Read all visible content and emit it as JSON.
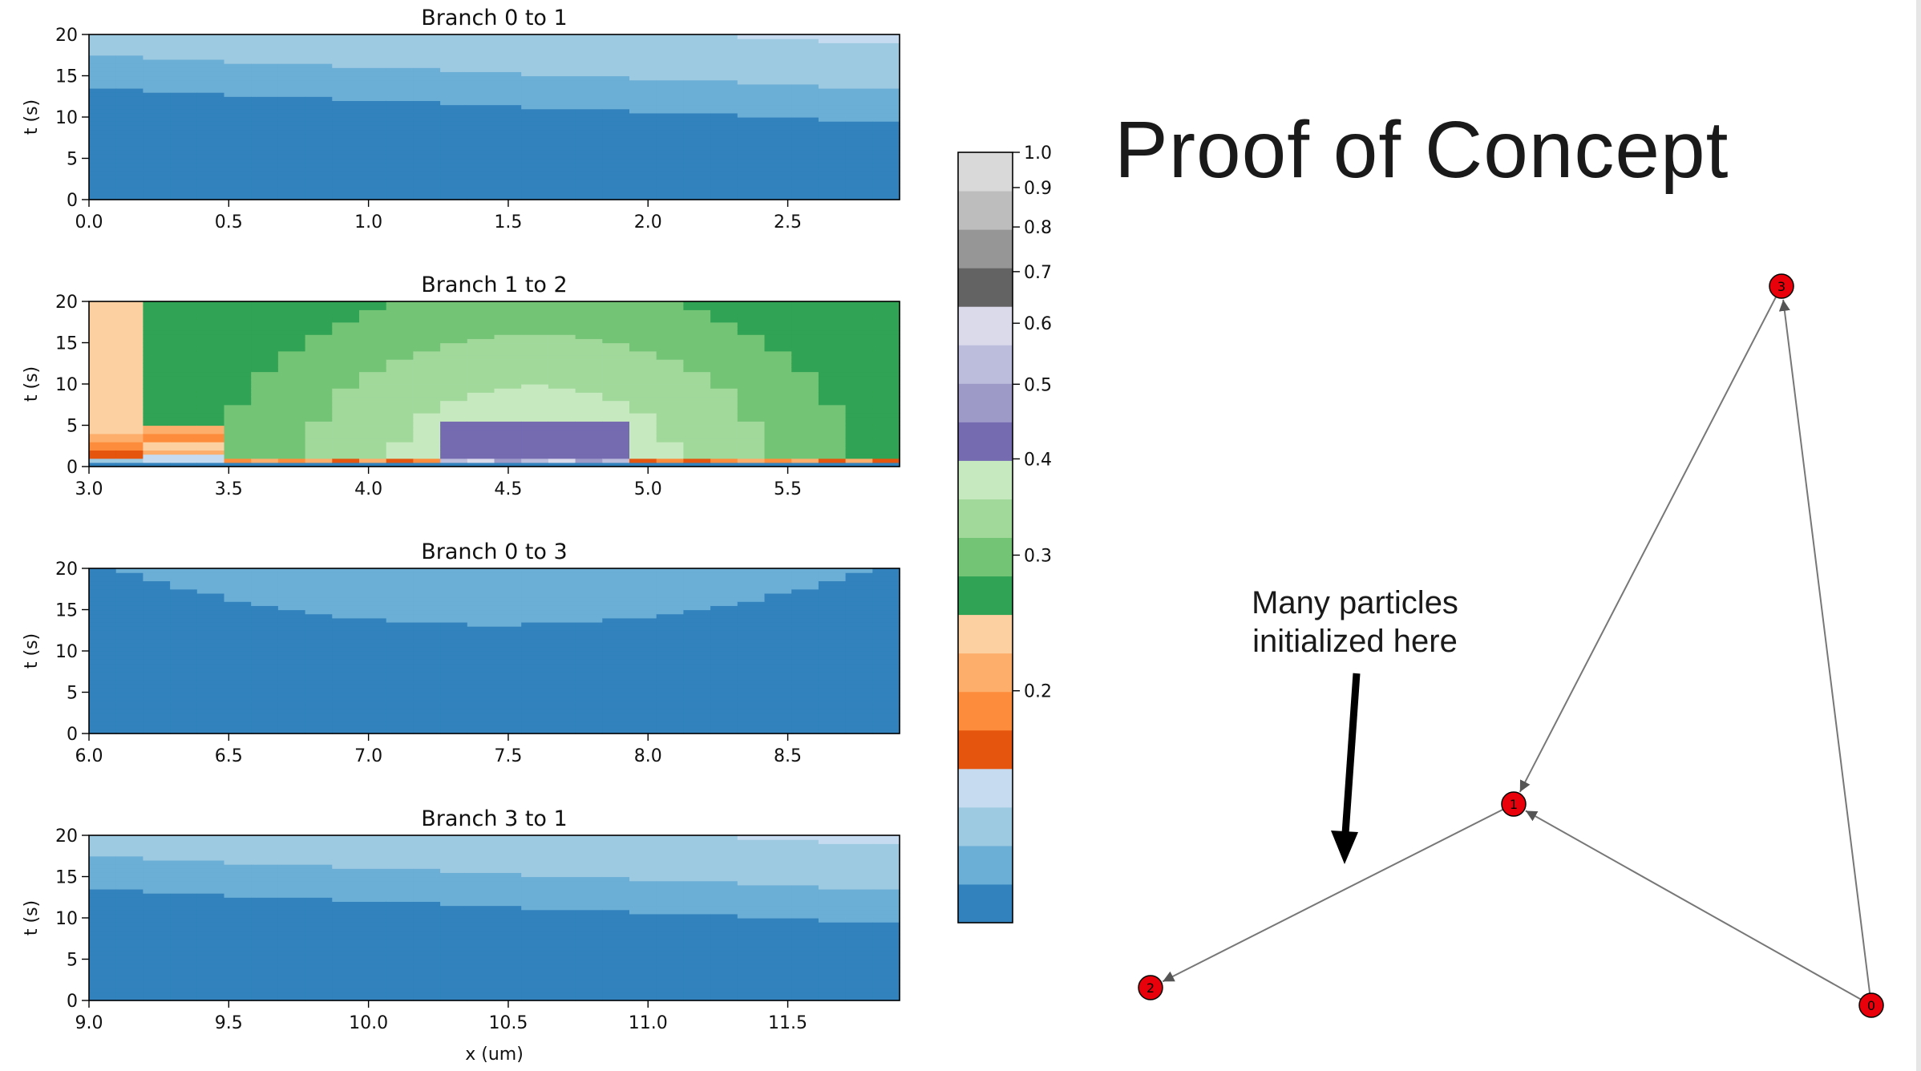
{
  "slide": {
    "title": "Proof of Concept",
    "annotation_line1": "Many particles",
    "annotation_line2": "initialized here"
  },
  "colors": {
    "level_colors": [
      "#3182bd",
      "#6baed6",
      "#9ecae1",
      "#c6dbef",
      "#e6550d",
      "#fd8d3c",
      "#fdae6b",
      "#fdd0a2",
      "#31a354",
      "#74c476",
      "#a1d99b",
      "#c7e9c0",
      "#756bb1",
      "#9e9ac8",
      "#bcbddc",
      "#dadaeb",
      "#636363",
      "#969696",
      "#bdbdbd",
      "#d9d9d9"
    ],
    "node_fill": "#e8000b",
    "edge_color": "#777777"
  },
  "chart_data": [
    {
      "type": "heatmap",
      "title": "Branch 0 to 1",
      "xlabel": "",
      "ylabel": "t (s)",
      "xlim": [
        0.0,
        2.9
      ],
      "ylim": [
        0,
        20
      ],
      "xticks": [
        "0.0",
        "0.5",
        "1.0",
        "1.5",
        "2.0",
        "2.5"
      ],
      "yticks": [
        "0",
        "5",
        "10",
        "15",
        "20"
      ],
      "pattern": "gradient",
      "band_offsets": [
        13.5,
        17.5,
        23,
        27,
        30.5,
        31.5,
        34
      ],
      "band_slope": -4.1
    },
    {
      "type": "heatmap",
      "title": "Branch 1 to 2",
      "xlabel": "",
      "ylabel": "t (s)",
      "xlim": [
        3.0,
        5.9
      ],
      "ylim": [
        0,
        20
      ],
      "xticks": [
        "3.0",
        "3.5",
        "4.0",
        "4.5",
        "5.0",
        "5.5"
      ],
      "yticks": [
        "0",
        "5",
        "10",
        "15",
        "20"
      ],
      "pattern": "dome"
    },
    {
      "type": "heatmap",
      "title": "Branch 0 to 3",
      "xlabel": "",
      "ylabel": "t (s)",
      "xlim": [
        6.0,
        8.9
      ],
      "ylim": [
        0,
        20
      ],
      "xticks": [
        "6.0",
        "6.5",
        "7.0",
        "7.5",
        "8.0",
        "8.5"
      ],
      "yticks": [
        "0",
        "5",
        "10",
        "15",
        "20"
      ],
      "pattern": "arch"
    },
    {
      "type": "heatmap",
      "title": "Branch 3 to 1",
      "xlabel": "x (um)",
      "ylabel": "t (s)",
      "xlim": [
        9.0,
        11.9
      ],
      "ylim": [
        0,
        20
      ],
      "xticks": [
        "9.0",
        "9.5",
        "10.0",
        "10.5",
        "11.0",
        "11.5"
      ],
      "yticks": [
        "0",
        "5",
        "10",
        "15",
        "20"
      ],
      "pattern": "gradient",
      "band_offsets": [
        13.5,
        17.5,
        23,
        27,
        30.5,
        31.5,
        34
      ],
      "band_slope": -4.1
    }
  ],
  "colorbar": {
    "type": "colorbar",
    "tick_labels": [
      "1.0",
      "0.9",
      "0.8",
      "0.7",
      "0.6",
      "0.5",
      "0.4",
      "0.3",
      "0.2"
    ],
    "tick_values": [
      1.0,
      0.9,
      0.8,
      0.7,
      0.6,
      0.5,
      0.4,
      0.3,
      0.2
    ]
  },
  "graph": {
    "type": "network",
    "nodes": [
      {
        "id": "0",
        "label": "0"
      },
      {
        "id": "1",
        "label": "1"
      },
      {
        "id": "2",
        "label": "2"
      },
      {
        "id": "3",
        "label": "3"
      }
    ],
    "edges": [
      {
        "source": "0",
        "target": "1"
      },
      {
        "source": "0",
        "target": "3"
      },
      {
        "source": "3",
        "target": "1"
      },
      {
        "source": "1",
        "target": "2"
      }
    ]
  }
}
